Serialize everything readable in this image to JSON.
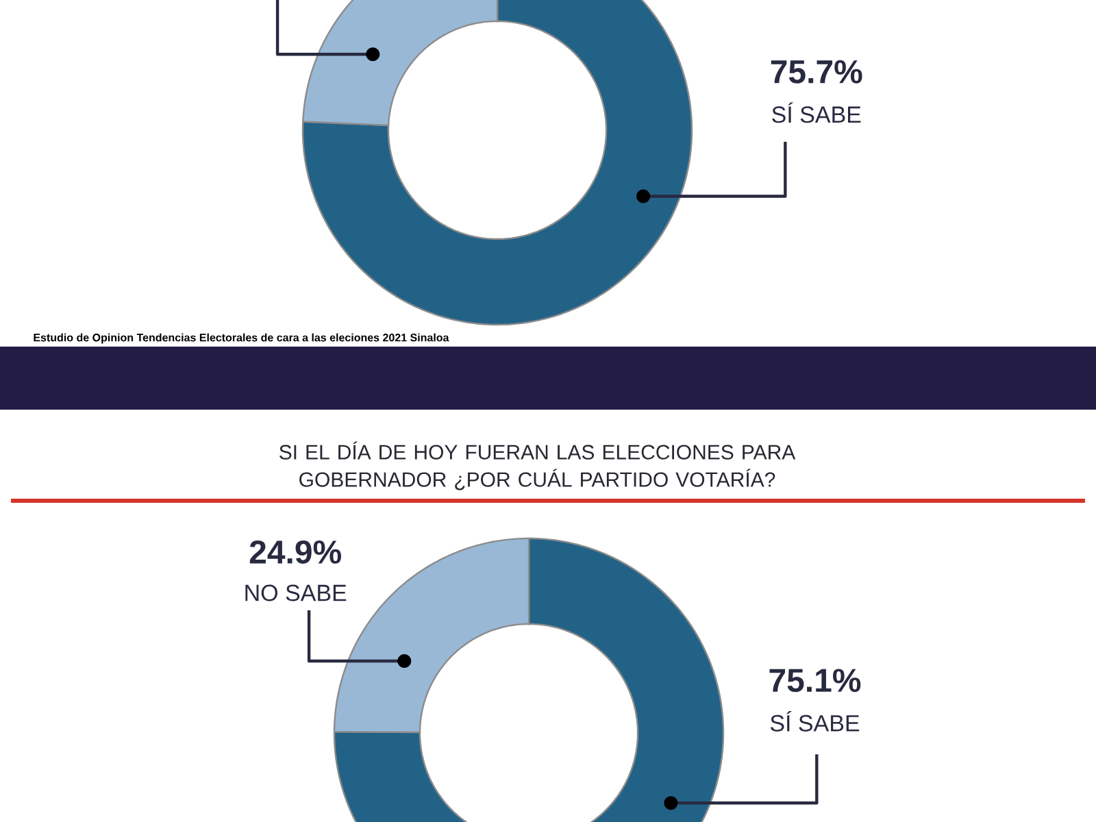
{
  "chart_data": [
    {
      "type": "donut",
      "categories": [
        "SÍ SABE",
        null
      ],
      "values": [
        75.7,
        24.3
      ],
      "colors": [
        "#236287",
        "#98b8d6"
      ],
      "value_labels": [
        "75.7%",
        null
      ],
      "annotations": [
        "Estudio de Opinion Tendencias Electorales de cara a las eleciones 2021 Sinaloa"
      ]
    },
    {
      "type": "donut",
      "title": "SI EL DÍA DE HOY FUERAN LAS ELECCIONES PARA GOBERNADOR ¿POR CUÁL PARTIDO VOTARÍA?",
      "categories": [
        "SÍ SABE",
        "NO SABE"
      ],
      "values": [
        75.1,
        24.9
      ],
      "colors": [
        "#236287",
        "#98b8d6"
      ],
      "value_labels": [
        "75.1%",
        "24.9%"
      ]
    }
  ]
}
